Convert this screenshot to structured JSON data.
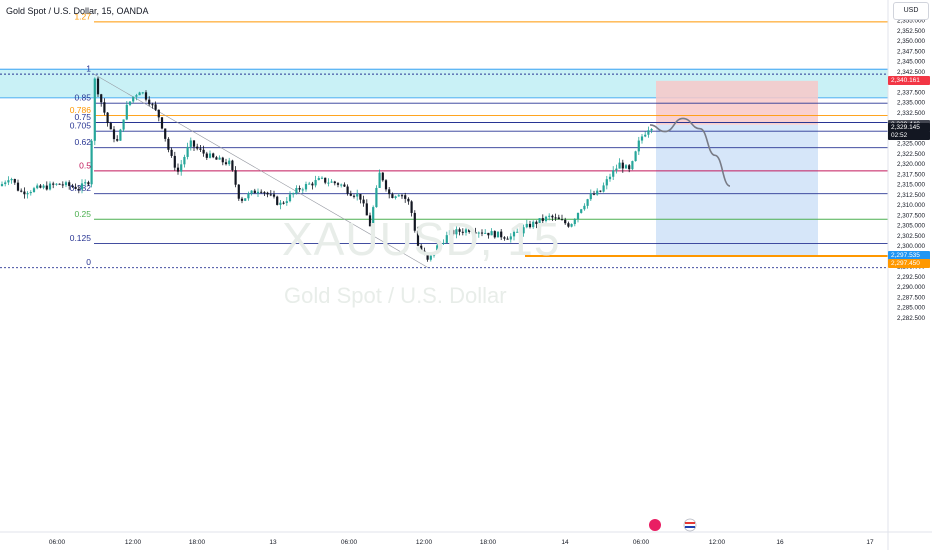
{
  "title": "Gold Spot / U.S. Dollar, 15, OANDA",
  "currency": "USD",
  "watermark": {
    "line1": "XAUUSD, 15",
    "line2": "Gold Spot / U.S. Dollar"
  },
  "colors": {
    "fib_blue": "#283593",
    "fib_orange": "#ff9800",
    "fib_red": "#c2185b",
    "fib_green": "#4caf50",
    "zone_cyan": "#b2ebf2",
    "candle_up": "#26a69a",
    "candle_down": "#131722",
    "stop_zone": "#f8c8c8",
    "target_zone": "#cfe2f8"
  },
  "axis": {
    "price_ticks": [
      "2,355.000",
      "2,352.500",
      "2,350.000",
      "2,347.500",
      "2,345.000",
      "2,342.500",
      "2,340.000",
      "2,337.500",
      "2,335.000",
      "2,332.500",
      "2,330.000",
      "2,327.500",
      "2,325.000",
      "2,322.500",
      "2,320.000",
      "2,317.500",
      "2,315.000",
      "2,312.500",
      "2,310.000",
      "2,307.500",
      "2,305.000",
      "2,302.500",
      "2,300.000",
      "2,297.500",
      "2,295.000",
      "2,292.500",
      "2,290.000",
      "2,287.500",
      "2,285.000",
      "2,282.500"
    ],
    "time_ticks": [
      "06:00",
      "12:00",
      "18:00",
      "13",
      "06:00",
      "12:00",
      "18:00",
      "14",
      "06:00",
      "12:00",
      "16",
      "17"
    ]
  },
  "price_labels": [
    {
      "text": "2,340.161",
      "color": "#f23645"
    },
    {
      "text": "2,329.440",
      "color": "#434651"
    },
    {
      "text": "2,329.145",
      "color": "#131722"
    },
    {
      "text": "02:52",
      "color": "#131722"
    },
    {
      "text": "2,297.535",
      "color": "#2196f3"
    },
    {
      "text": "2,297.450",
      "color": "#ff9800"
    }
  ],
  "fib_levels": [
    {
      "label": "1.27",
      "color": "#ff9800"
    },
    {
      "label": "1",
      "color": "#283593"
    },
    {
      "label": "0.85",
      "color": "#283593"
    },
    {
      "label": "0.786",
      "color": "#ff9800"
    },
    {
      "label": "0.75",
      "color": "#283593"
    },
    {
      "label": "0.705",
      "color": "#283593"
    },
    {
      "label": "0.62",
      "color": "#283593"
    },
    {
      "label": "0.5",
      "color": "#c2185b"
    },
    {
      "label": "0.382",
      "color": "#283593"
    },
    {
      "label": "0.25",
      "color": "#4caf50"
    },
    {
      "label": "0.125",
      "color": "#283593"
    },
    {
      "label": "0",
      "color": "#283593"
    }
  ],
  "chart_data": {
    "type": "candlestick",
    "symbol": "XAUUSD",
    "interval": "15",
    "ylim": [
      2281.5,
      2356.5
    ],
    "last_price": 2329.145,
    "fib_retracement": {
      "high": 2341.8,
      "low": 2294.6,
      "levels": [
        1.27,
        1,
        0.85,
        0.786,
        0.75,
        0.705,
        0.62,
        0.5,
        0.382,
        0.25,
        0.125,
        0
      ]
    },
    "supply_zone": {
      "top": 2343.0,
      "bottom": 2336.0
    },
    "short_position": {
      "entry": 2329.44,
      "stop": 2340.161,
      "target": 2297.535
    },
    "support_line": 2297.45,
    "projection_path": [
      2329.4,
      2327.8,
      2331.0,
      2328.5,
      2322.0,
      2314.5
    ]
  }
}
